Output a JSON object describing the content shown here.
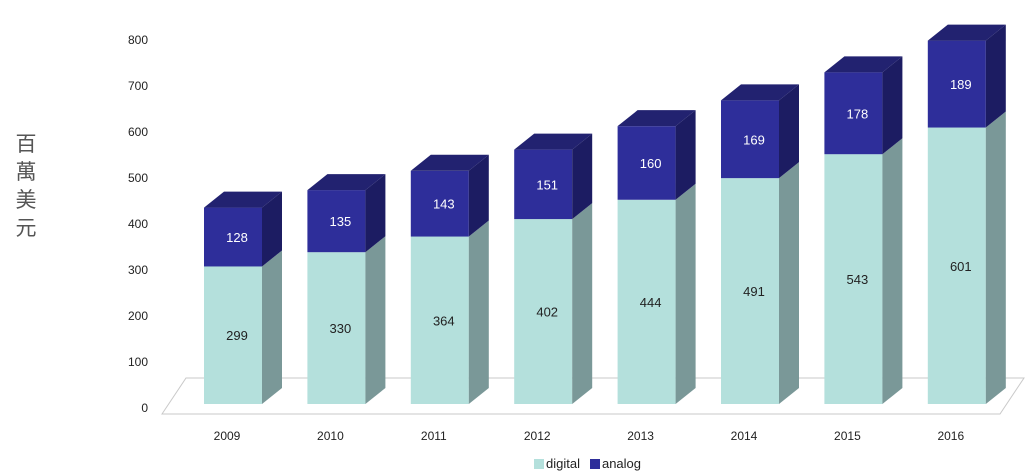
{
  "chart_data": {
    "type": "bar",
    "stacked": true,
    "three_d": true,
    "categories": [
      "2009",
      "2010",
      "2011",
      "2012",
      "2013",
      "2014",
      "2015",
      "2016"
    ],
    "series": [
      {
        "name": "digital",
        "values": [
          299,
          330,
          364,
          402,
          444,
          491,
          543,
          601
        ],
        "color": "#b4e0dc",
        "side_color": "#7a9898"
      },
      {
        "name": "analog",
        "values": [
          128,
          135,
          143,
          151,
          160,
          169,
          178,
          189
        ],
        "color": "#2e2e9a",
        "side_color": "#1c1c62"
      }
    ],
    "ylabel": "百萬美元",
    "yticks": [
      "0",
      "100",
      "200",
      "300",
      "400",
      "500",
      "600",
      "700",
      "800"
    ],
    "ylim": [
      0,
      800
    ],
    "grid": false,
    "legend_position": "bottom-center"
  }
}
